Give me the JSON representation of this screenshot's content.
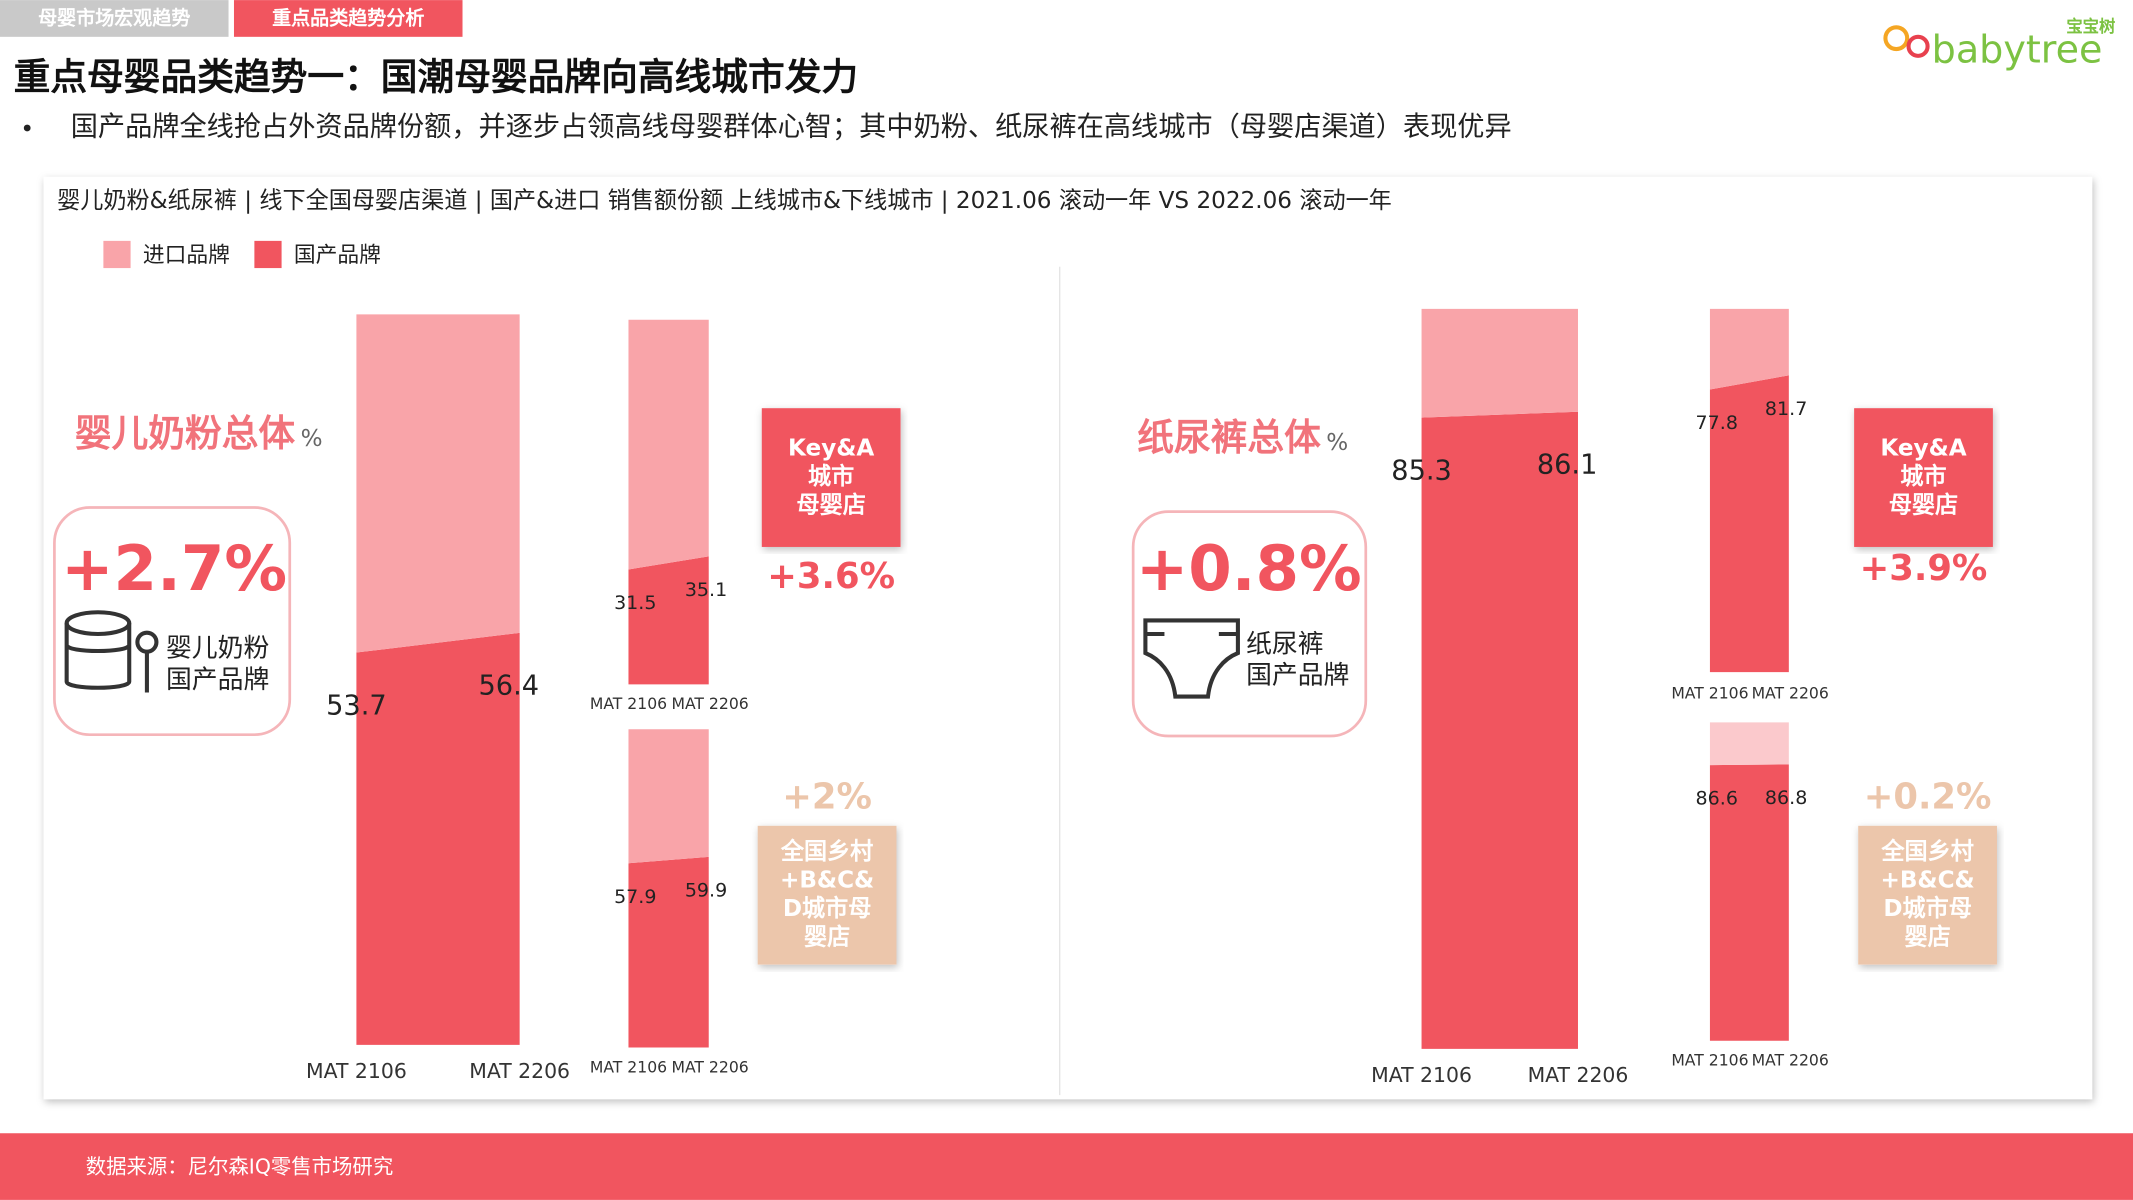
{
  "tabs": [
    "母婴市场宏观趋势",
    "重点品类趋势分析"
  ],
  "title": "重点母婴品类趋势一：国潮母婴品牌向高线城市发力",
  "bullet": "国产品牌全线抢占外资品牌份额，并逐步占领高线母婴群体心智；其中奶粉、纸尿裤在高线城市（母婴店渠道）表现优异",
  "subtitle": "婴儿奶粉&纸尿裤 | 线下全国母婴店渠道 | 国产&进口 销售额份额 上线城市&下线城市 | 2021.06 滚动一年 VS 2022.06 滚动一年",
  "source": "数据来源：尼尔森IQ零售市场研究",
  "logo": {
    "text": "babytree",
    "cn": "宝宝树"
  },
  "chart_data": [
    {
      "type": "stacked_bar",
      "title": "婴儿奶粉总体",
      "unit": "%",
      "change": "+2.7%",
      "icon_label": [
        "婴儿奶粉",
        "国产品牌"
      ],
      "categories": [
        "MAT 2106",
        "MAT 2206"
      ],
      "ylim": [
        0,
        100
      ],
      "series": [
        {
          "name": "进口品牌",
          "color": "#f9a4a9",
          "values": [
            46.3,
            43.6
          ]
        },
        {
          "name": "国产品牌",
          "color": "#f1555f",
          "values": [
            53.7,
            56.4
          ]
        }
      ]
    },
    {
      "type": "stacked_bar",
      "label": [
        "Key&A",
        "城市",
        "母婴店"
      ],
      "change": "+3.6%",
      "label_color": "#f1555f",
      "categories": [
        "MAT 2106",
        "MAT 2206"
      ],
      "ylim": [
        0,
        100
      ],
      "series": [
        {
          "name": "进口品牌",
          "color": "#f9a4a9",
          "values": [
            68.5,
            64.9
          ]
        },
        {
          "name": "国产品牌",
          "color": "#f1555f",
          "values": [
            31.5,
            35.1
          ]
        }
      ]
    },
    {
      "type": "stacked_bar",
      "label": [
        "全国乡村",
        "+B&C&",
        "D城市母",
        "婴店"
      ],
      "change": "+2%",
      "label_color": "#ecc6ab",
      "categories": [
        "MAT 2106",
        "MAT 2206"
      ],
      "ylim": [
        0,
        100
      ],
      "series": [
        {
          "name": "进口品牌",
          "color": "#f9a4a9",
          "values": [
            42.1,
            40.1
          ]
        },
        {
          "name": "国产品牌",
          "color": "#f1555f",
          "values": [
            57.9,
            59.9
          ]
        }
      ]
    },
    {
      "type": "stacked_bar",
      "title": "纸尿裤总体",
      "unit": "%",
      "change": "+0.8%",
      "icon_label": [
        "纸尿裤",
        "国产品牌"
      ],
      "categories": [
        "MAT 2106",
        "MAT 2206"
      ],
      "ylim": [
        0,
        100
      ],
      "series": [
        {
          "name": "进口品牌",
          "color": "#f9a4a9",
          "values": [
            14.7,
            13.9
          ]
        },
        {
          "name": "国产品牌",
          "color": "#f1555f",
          "values": [
            85.3,
            86.1
          ]
        }
      ]
    },
    {
      "type": "stacked_bar",
      "label": [
        "Key&A",
        "城市",
        "母婴店"
      ],
      "change": "+3.9%",
      "label_color": "#f1555f",
      "categories": [
        "MAT 2106",
        "MAT 2206"
      ],
      "ylim": [
        0,
        100
      ],
      "series": [
        {
          "name": "进口品牌",
          "color": "#f9a4a9",
          "values": [
            22.2,
            18.3
          ]
        },
        {
          "name": "国产品牌",
          "color": "#f1555f",
          "values": [
            77.8,
            81.7
          ]
        }
      ]
    },
    {
      "type": "stacked_bar",
      "label": [
        "全国乡村",
        "+B&C&",
        "D城市母",
        "婴店"
      ],
      "change": "+0.2%",
      "label_color": "#ecc6ab",
      "categories": [
        "MAT 2106",
        "MAT 2206"
      ],
      "ylim": [
        0,
        100
      ],
      "series": [
        {
          "name": "进口品牌",
          "color": "#fbc9cc",
          "values": [
            13.4,
            13.2
          ]
        },
        {
          "name": "国产品牌",
          "color": "#f1555f",
          "values": [
            86.6,
            86.8
          ]
        }
      ]
    }
  ]
}
